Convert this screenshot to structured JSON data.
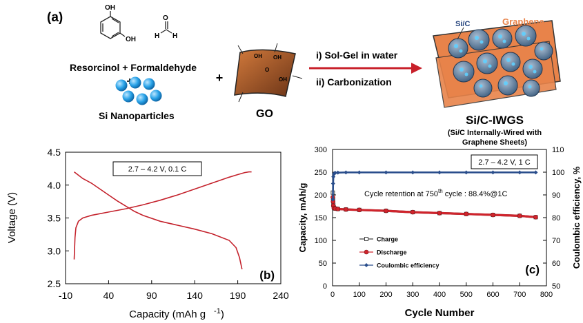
{
  "panel_a": {
    "label": "(a)",
    "oh_label_1": "OH",
    "oh_label_2": "OH",
    "formaldehyde_h": "H",
    "formaldehyde_o": "O",
    "reactants_label": "Resorcinol + Formaldehyde",
    "plus_1": "+",
    "plus_2": "+",
    "si_label": "Si Nanoparticles",
    "go_label": "GO",
    "go_groups": [
      "OH",
      "OH",
      "O",
      "OH"
    ],
    "step_1": "i) Sol-Gel in water",
    "step_2": "ii) Carbonization",
    "sic_label": "Si/C",
    "graphene_label": "Graphene",
    "product_label": "Si/C-IWGS",
    "product_desc_1": "(Si/C Internally-Wired with",
    "product_desc_2": "Graphene Sheets)",
    "colors": {
      "graphene": "#e8834a",
      "si": "#2aa3e8",
      "sic_sphere": "#6f8fb0",
      "arrow": "#c8202a"
    }
  },
  "chart_data": [
    {
      "type": "line",
      "panel": "(b)",
      "annotation": "2.7 – 4.2 V, 0.1 C",
      "xlabel": "Capacity (mAh g",
      "xlabel_sup": "-1",
      "xlabel_end": ")",
      "ylabel": "Voltage (V)",
      "xlim": [
        -10,
        240
      ],
      "ylim": [
        2.5,
        4.5
      ],
      "xticks": [
        -10,
        40,
        90,
        140,
        190,
        240
      ],
      "yticks": [
        2.5,
        3.0,
        3.5,
        4.0,
        4.5
      ],
      "ytick_labels": [
        "2.5",
        "3.0",
        "3.5",
        "4.0",
        "4.5"
      ],
      "series": [
        {
          "color": "#c4222c",
          "x": [
            0,
            1,
            2,
            5,
            10,
            20,
            40,
            60,
            80,
            100,
            120,
            140,
            160,
            180,
            190,
            198,
            203,
            206
          ],
          "y": [
            2.87,
            3.2,
            3.35,
            3.45,
            3.5,
            3.54,
            3.59,
            3.64,
            3.7,
            3.77,
            3.85,
            3.94,
            4.03,
            4.12,
            4.16,
            4.19,
            4.2,
            4.2
          ]
        },
        {
          "color": "#c4222c",
          "x": [
            0,
            5,
            10,
            20,
            30,
            40,
            50,
            60,
            70,
            80,
            100,
            120,
            140,
            160,
            180,
            188,
            192,
            195
          ],
          "y": [
            4.2,
            4.15,
            4.1,
            4.03,
            3.94,
            3.85,
            3.76,
            3.68,
            3.6,
            3.54,
            3.45,
            3.39,
            3.33,
            3.26,
            3.16,
            3.05,
            2.9,
            2.72
          ]
        }
      ]
    },
    {
      "type": "scatter",
      "panel": "(c)",
      "annotation": "2.7 – 4.2 V, 1 C",
      "retention_text": "Cycle retention at 750",
      "retention_sup": "th",
      "retention_text_end": " cycle : 88.4%@1C",
      "xlabel": "Cycle Number",
      "ylabel": "Capacity, mAh/g",
      "y2label": "Coulombic efficiency, %",
      "xlim": [
        0,
        800
      ],
      "ylim": [
        0,
        300
      ],
      "y2lim": [
        50,
        110
      ],
      "xticks": [
        0,
        100,
        200,
        300,
        400,
        500,
        600,
        700,
        800
      ],
      "yticks": [
        0,
        50,
        100,
        150,
        200,
        250,
        300
      ],
      "y2ticks": [
        50,
        60,
        70,
        80,
        90,
        100,
        110
      ],
      "legend_position": "lower-left",
      "series": [
        {
          "name": "Charge",
          "marker": "open-square",
          "color": "#444444",
          "x": [
            1,
            2,
            3,
            5,
            10,
            20,
            50,
            100,
            200,
            300,
            400,
            500,
            600,
            700,
            760
          ],
          "y": [
            205,
            190,
            178,
            172,
            170,
            169,
            168,
            167,
            165,
            162,
            160,
            158,
            156,
            154,
            151
          ]
        },
        {
          "name": "Discharge",
          "marker": "filled-circle",
          "color": "#d0242c",
          "x": [
            1,
            2,
            3,
            5,
            10,
            20,
            50,
            100,
            200,
            300,
            400,
            500,
            600,
            700,
            760
          ],
          "y": [
            195,
            185,
            176,
            171,
            170,
            169,
            168,
            167,
            165,
            162,
            160,
            158,
            156,
            154,
            151
          ]
        },
        {
          "name": "Coulombic efficiency",
          "marker": "filled-diamond",
          "color": "#2a4e8c",
          "axis": "right",
          "x": [
            1,
            2,
            3,
            5,
            8,
            10,
            20,
            50,
            100,
            200,
            300,
            400,
            500,
            600,
            700,
            760
          ],
          "y": [
            88,
            95,
            98,
            99.2,
            99.6,
            99.7,
            99.8,
            99.9,
            99.9,
            99.9,
            99.9,
            99.9,
            99.9,
            99.9,
            99.9,
            99.9
          ]
        }
      ]
    }
  ]
}
